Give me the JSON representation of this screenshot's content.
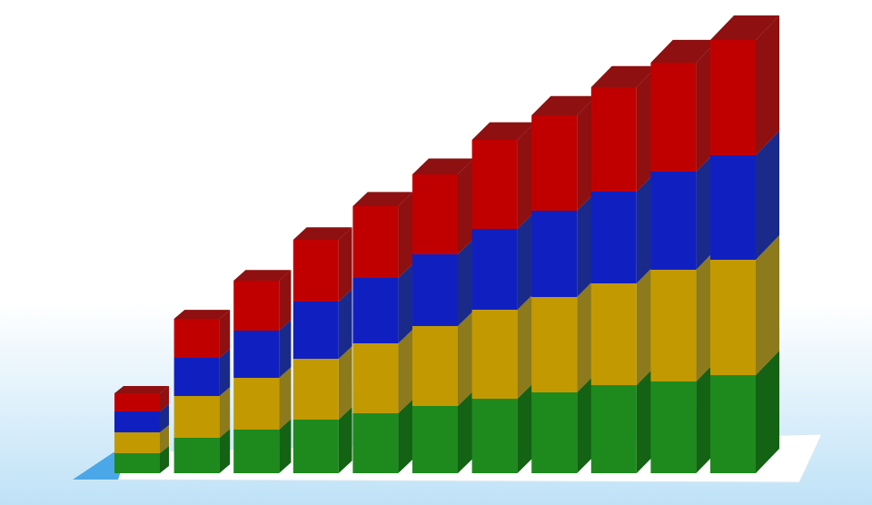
{
  "chart_data": {
    "type": "stacked-bar-3d",
    "categories": [
      null,
      null,
      null,
      null,
      null,
      null,
      null,
      null,
      null,
      null,
      null
    ],
    "series": [
      {
        "color": "#1e8a1e",
        "side_color": "#146214",
        "values": [
          22,
          39,
          48,
          59,
          66,
          74,
          82,
          89,
          97,
          101,
          108
        ]
      },
      {
        "color": "#c29a00",
        "side_color": "#8c7a1c",
        "values": [
          23,
          46,
          57,
          67,
          77,
          88,
          98,
          105,
          112,
          123,
          127
        ]
      },
      {
        "color": "#1020c0",
        "side_color": "#1a2a8a",
        "values": [
          23,
          42,
          52,
          63,
          72,
          79,
          89,
          95,
          101,
          108,
          115
        ]
      },
      {
        "color": "#c00000",
        "side_color": "#8e1010",
        "values": [
          20,
          43,
          55,
          68,
          79,
          88,
          98,
          105,
          115,
          120,
          127
        ]
      }
    ]
  }
}
